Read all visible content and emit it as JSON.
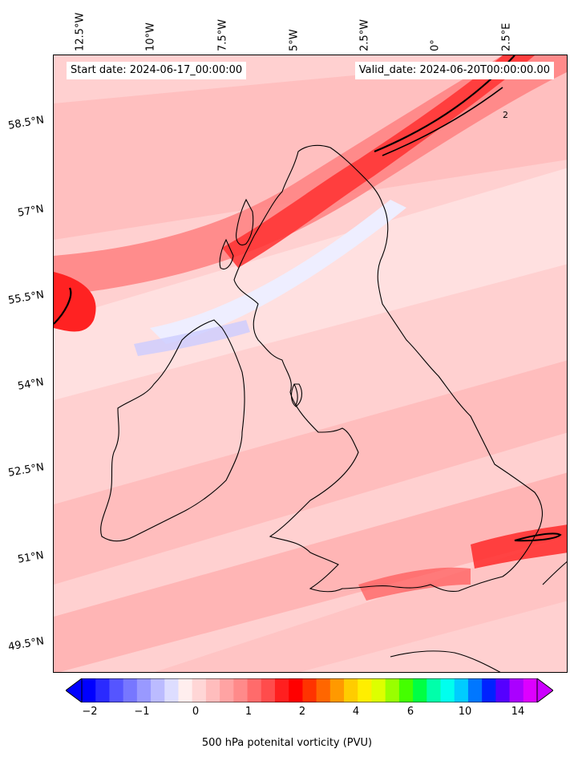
{
  "header": {
    "start_date": "Start date: 2024-06-17_00:00:00",
    "valid_date": "Valid_date: 2024-06-20T00:00:00.00"
  },
  "lon_labels": [
    "12.5°W",
    "10°W",
    "7.5°W",
    "5°W",
    "2.5°W",
    "0°",
    "2.5°E"
  ],
  "lat_labels": [
    "58.5°N",
    "57°N",
    "55.5°N",
    "54°N",
    "52.5°N",
    "51°N",
    "49.5°N"
  ],
  "colorbar": {
    "label": "500 hPa potenital vorticity (PVU)",
    "ticks": [
      "−2",
      "−1",
      "0",
      "1",
      "2",
      "4",
      "6",
      "10",
      "14"
    ],
    "colors": [
      "#0000ff",
      "#2a2aff",
      "#5555ff",
      "#7777ff",
      "#9999ff",
      "#bbbbff",
      "#ddddff",
      "#ffeeee",
      "#ffd6d6",
      "#ffbdbd",
      "#ffa3a3",
      "#ff8a8a",
      "#ff6b6b",
      "#ff4c4c",
      "#ff1f1f",
      "#ff0000",
      "#ff3300",
      "#ff6600",
      "#ff9900",
      "#ffcc00",
      "#ffee00",
      "#ddff00",
      "#99ff00",
      "#44ff00",
      "#00ff44",
      "#00ffaa",
      "#00ffee",
      "#00ccff",
      "#0077ff",
      "#0022ff",
      "#5500ff",
      "#aa00ff",
      "#dd00ff"
    ]
  },
  "contour_label": "2"
}
